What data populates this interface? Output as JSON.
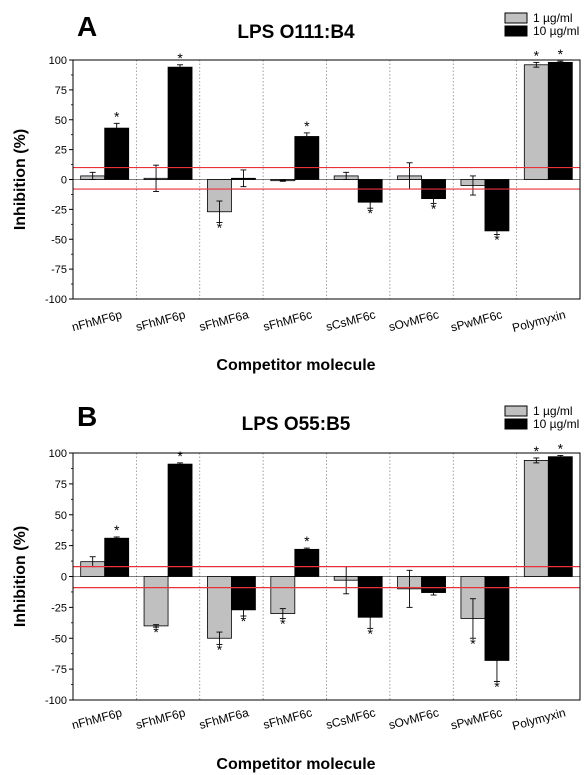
{
  "chart_data": [
    {
      "type": "bar",
      "panel_letter": "A",
      "title": "LPS O111:B4",
      "xlabel": "Competitor molecule",
      "ylabel": "Inhibition (%)",
      "ylim": [
        -100,
        100
      ],
      "yticks": [
        100,
        75,
        50,
        25,
        0,
        -25,
        -50,
        -75,
        -100
      ],
      "reference_lines": [
        10,
        -8
      ],
      "reference_line_color": "#e8323a",
      "legend_position": "top-right",
      "categories": [
        "nFhMF6p",
        "sFhMF6p",
        "sFhMF6a",
        "sFhMF6c",
        "sCsMF6c",
        "sOvMF6c",
        "sPwMF6c",
        "Polymyxin"
      ],
      "series": [
        {
          "name": "1 µg/ml",
          "color": "#c0c0c0",
          "values": [
            3,
            1,
            -27,
            -1,
            3,
            3,
            -5,
            96
          ],
          "errors": [
            3,
            11,
            9,
            0.5,
            3,
            11,
            8,
            2
          ],
          "significant": [
            false,
            false,
            true,
            false,
            false,
            false,
            false,
            true
          ]
        },
        {
          "name": "10 µg/ml",
          "color": "#000000",
          "values": [
            43,
            94,
            1,
            36,
            -19,
            -16,
            -43,
            98
          ],
          "errors": [
            4,
            2,
            7,
            3,
            5,
            4,
            3,
            1
          ],
          "significant": [
            true,
            true,
            false,
            true,
            true,
            true,
            true,
            true
          ]
        }
      ]
    },
    {
      "type": "bar",
      "panel_letter": "B",
      "title": "LPS O55:B5",
      "xlabel": "Competitor molecule",
      "ylabel": "Inhibition (%)",
      "ylim": [
        -100,
        100
      ],
      "yticks": [
        100,
        75,
        50,
        25,
        0,
        -25,
        -50,
        -75,
        -100
      ],
      "reference_lines": [
        8,
        -9
      ],
      "reference_line_color": "#e8323a",
      "legend_position": "top-right",
      "categories": [
        "nFhMF6p",
        "sFhMF6p",
        "sFhMF6a",
        "sFhMF6c",
        "sCsMF6c",
        "sOvMF6c",
        "sPwMF6c",
        "Polymyxin"
      ],
      "series": [
        {
          "name": "1 µg/ml",
          "color": "#c0c0c0",
          "values": [
            12,
            -40,
            -50,
            -30,
            -3,
            -10,
            -34,
            94
          ],
          "errors": [
            4,
            1,
            5,
            4,
            11,
            15,
            16,
            2
          ],
          "significant": [
            false,
            true,
            true,
            true,
            false,
            false,
            true,
            true
          ]
        },
        {
          "name": "10 µg/ml",
          "color": "#000000",
          "values": [
            31,
            91,
            -27,
            22,
            -33,
            -13,
            -68,
            97
          ],
          "errors": [
            1,
            1,
            5,
            1,
            9,
            2,
            17,
            1
          ],
          "significant": [
            true,
            true,
            true,
            true,
            true,
            false,
            true,
            true
          ]
        }
      ]
    }
  ]
}
